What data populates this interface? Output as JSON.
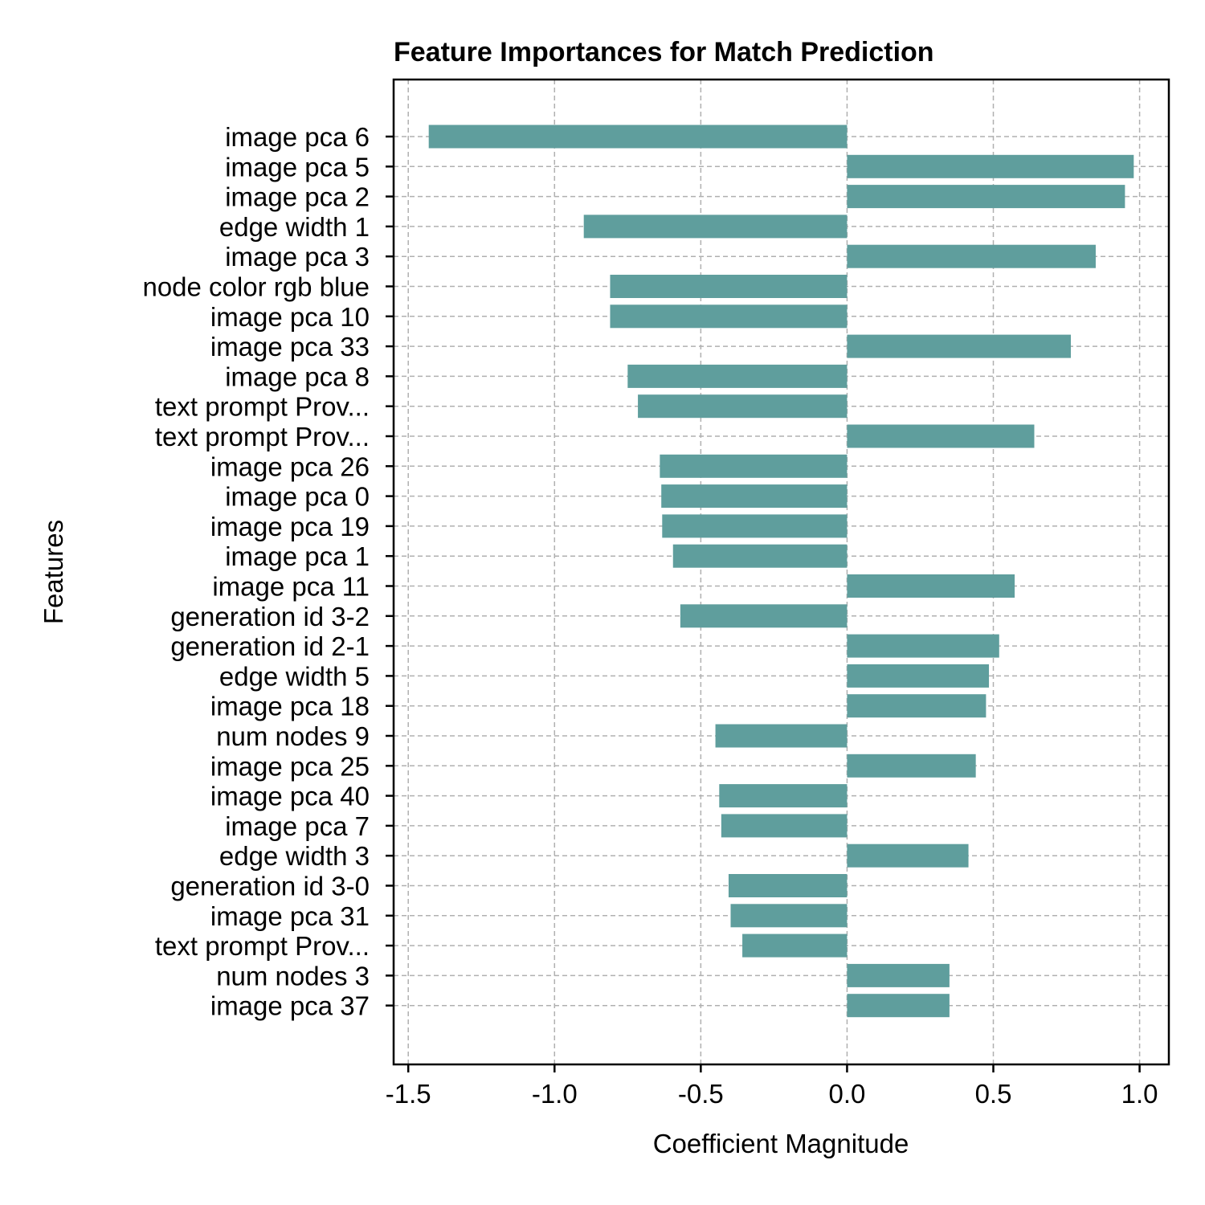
{
  "chart_data": {
    "type": "bar",
    "orientation": "horizontal",
    "title": "Feature Importances for Match Prediction",
    "xlabel": "Coefficient Magnitude",
    "ylabel": "Features",
    "xlim": [
      -1.55,
      1.1
    ],
    "xticks": [
      -1.5,
      -1.0,
      -0.5,
      0.0,
      0.5,
      1.0
    ],
    "xtick_labels": [
      "-1.5",
      "-1.0",
      "-0.5",
      "0.0",
      "0.5",
      "1.0"
    ],
    "grid": true,
    "bar_color": "#5f9e9d",
    "categories": [
      "image pca 6",
      "image pca 5",
      "image pca 2",
      "edge width 1",
      "image pca 3",
      "node color rgb blue",
      "image pca 10",
      "image pca 33",
      "image pca 8",
      "text prompt Prov...",
      "text prompt Prov...",
      "image pca 26",
      "image pca 0",
      "image pca 19",
      "image pca 1",
      "image pca 11",
      "generation id 3-2",
      "generation id 2-1",
      "edge width 5",
      "image pca 18",
      "num nodes 9",
      "image pca 25",
      "image pca 40",
      "image pca 7",
      "edge width 3",
      "generation id 3-0",
      "image pca 31",
      "text prompt Prov...",
      "num nodes 3",
      "image pca 37"
    ],
    "values": [
      -1.43,
      0.98,
      0.95,
      -0.9,
      0.85,
      -0.81,
      -0.81,
      0.765,
      -0.75,
      -0.715,
      0.64,
      -0.64,
      -0.635,
      -0.632,
      -0.595,
      0.573,
      -0.57,
      0.52,
      0.485,
      0.475,
      -0.45,
      0.44,
      -0.437,
      -0.43,
      0.415,
      -0.405,
      -0.398,
      -0.358,
      0.35,
      0.35
    ]
  }
}
